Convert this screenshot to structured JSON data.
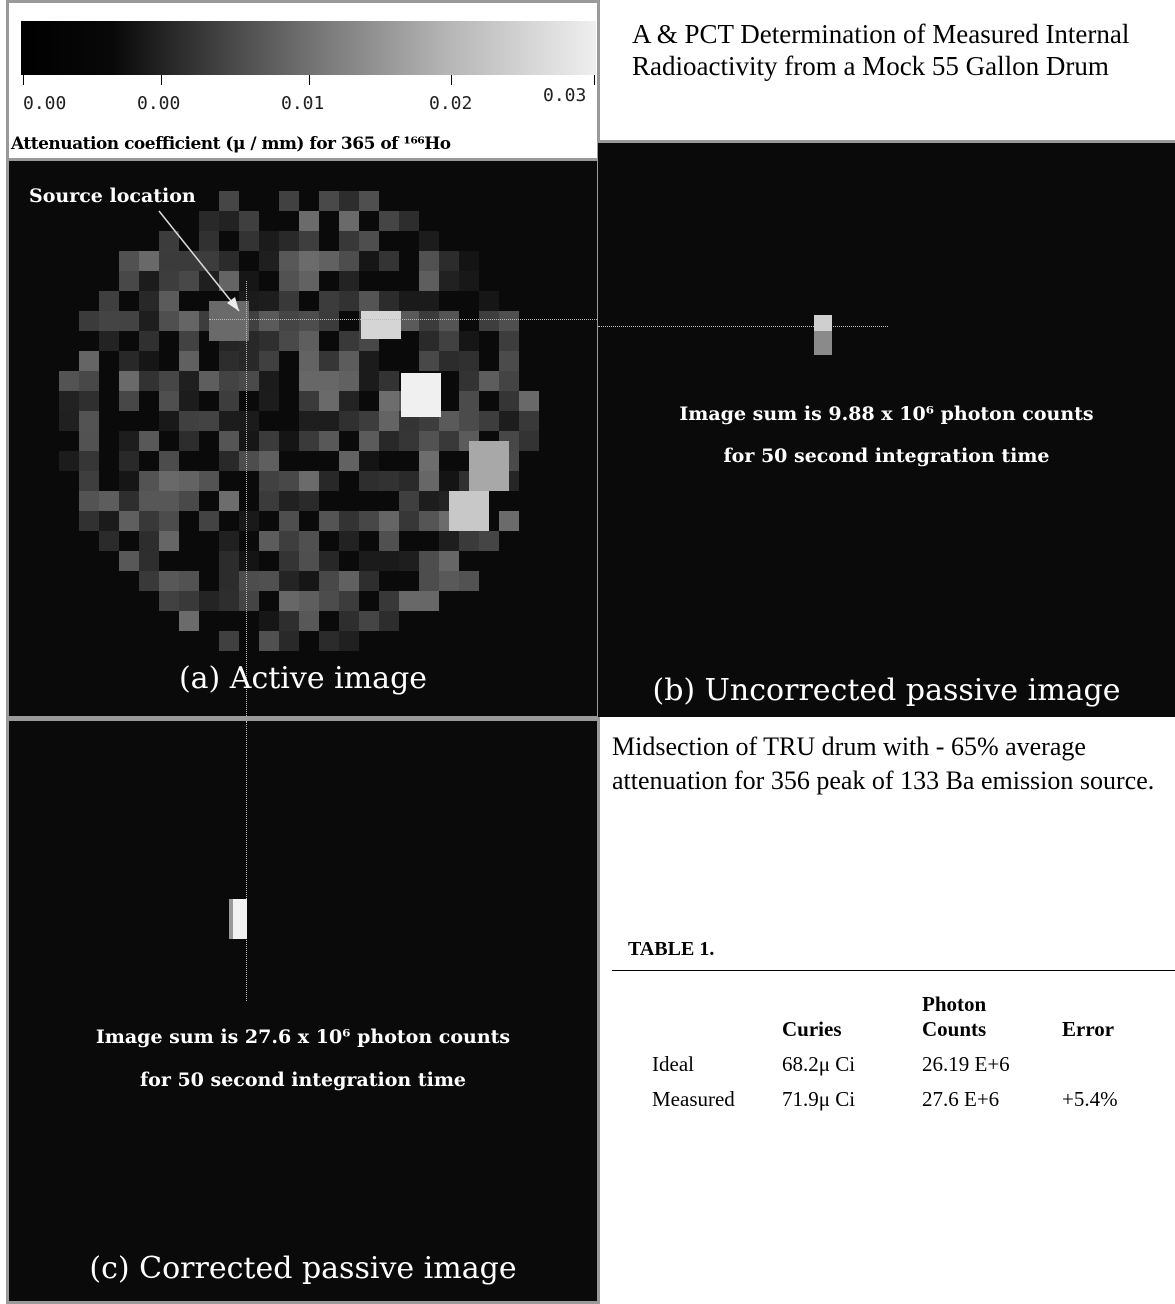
{
  "title": "A & PCT Determination of Measured Internal Radioactivity from a Mock 55 Gallon Drum",
  "colorbar": {
    "ticks": [
      "0.00",
      "0.00",
      "0.01",
      "0.02",
      "0.03"
    ],
    "title": "Attenuation coefficient (μ / mm) for 365 of ¹⁶⁶Ho"
  },
  "panel_a": {
    "source_label": "Source location",
    "caption": "(a)  Active image"
  },
  "panel_b": {
    "sum_line1": "Image sum is 9.88 x 10⁶ photon counts",
    "sum_line2": "for 50 second integration time",
    "caption": "(b) Uncorrected passive image"
  },
  "panel_c": {
    "sum_line1": "Image sum is 27.6 x 10⁶ photon counts",
    "sum_line2": "for 50 second integration time",
    "caption": "(c) Corrected passive image"
  },
  "midsection_text": "Midsection of TRU drum with - 65% average attenuation for 356 peak of 133 Ba emission source.",
  "table": {
    "title": "TABLE 1.",
    "headers": [
      "",
      "Curies",
      "Photon Counts",
      "Error"
    ],
    "rows": [
      [
        "Ideal",
        "68.2μ Ci",
        "26.19 E+6",
        ""
      ],
      [
        "Measured",
        "71.9μ Ci",
        "27.6 E+6",
        "+5.4%"
      ]
    ]
  }
}
